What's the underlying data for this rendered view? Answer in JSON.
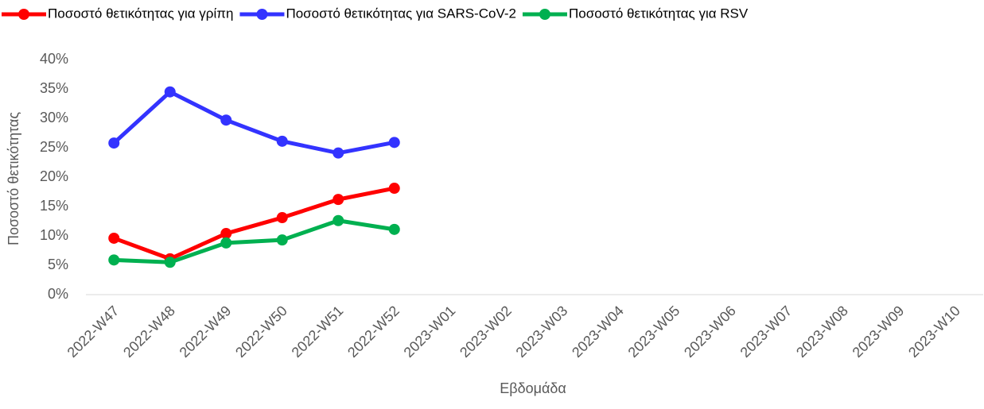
{
  "chart_data": {
    "type": "line",
    "categories": [
      "2022-W47",
      "2022-W48",
      "2022-W49",
      "2022-W50",
      "2022-W51",
      "2022-W52",
      "2023-W01",
      "2023-W02",
      "2023-W03",
      "2023-W04",
      "2023-W05",
      "2023-W06",
      "2023-W07",
      "2023-W08",
      "2023-W09",
      "2023-W10"
    ],
    "series": [
      {
        "name": "Ποσοστό θετικότητας για γρίπη",
        "color": "#ff0000",
        "values": [
          9.6,
          6.1,
          10.4,
          13.1,
          16.2,
          18.1,
          null,
          null,
          null,
          null,
          null,
          null,
          null,
          null,
          null,
          null
        ]
      },
      {
        "name": "Ποσοστό θετικότητας για SARS-CoV-2",
        "color": "#3333ff",
        "values": [
          25.8,
          34.5,
          29.7,
          26.1,
          24.1,
          25.9,
          null,
          null,
          null,
          null,
          null,
          null,
          null,
          null,
          null,
          null
        ]
      },
      {
        "name": "Ποσοστό θετικότητας για RSV",
        "color": "#00b050",
        "values": [
          5.9,
          5.5,
          8.8,
          9.3,
          12.6,
          11.1,
          null,
          null,
          null,
          null,
          null,
          null,
          null,
          null,
          null,
          null
        ]
      }
    ],
    "x_label": "Εβδομάδα",
    "y_label": "Ποσοστό θετικότητας",
    "ylim": [
      0,
      40
    ],
    "yticks": [
      {
        "value": 0,
        "label": "0%"
      },
      {
        "value": 5,
        "label": "5%"
      },
      {
        "value": 10,
        "label": "10%"
      },
      {
        "value": 15,
        "label": "15%"
      },
      {
        "value": 20,
        "label": "20%"
      },
      {
        "value": 25,
        "label": "25%"
      },
      {
        "value": 30,
        "label": "30%"
      },
      {
        "value": 35,
        "label": "35%"
      },
      {
        "value": 40,
        "label": "40%"
      }
    ],
    "grid": false,
    "legend": "top"
  }
}
